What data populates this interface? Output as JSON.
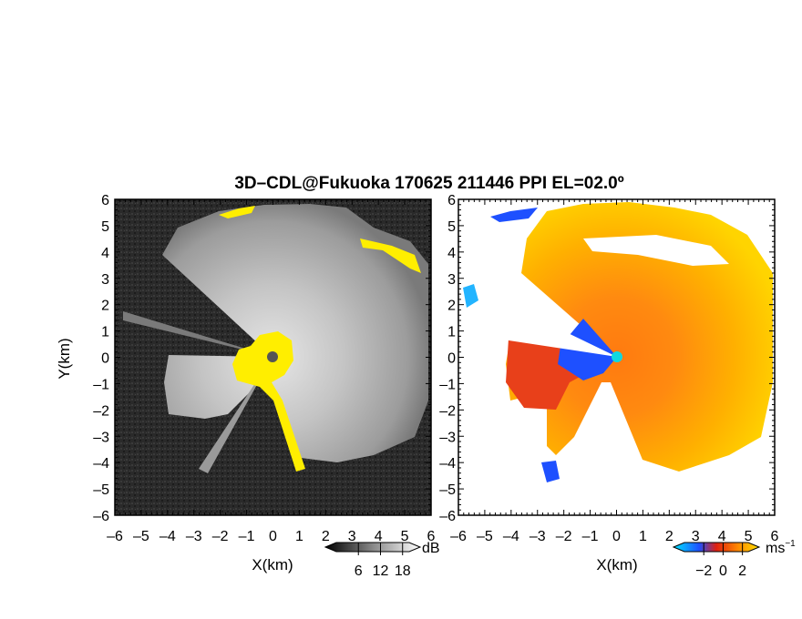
{
  "figure": {
    "title": "3D–CDL@Fukuoka 170625 211446 PPI EL=02.0º"
  },
  "chart_data": [
    {
      "type": "heatmap",
      "name": "reflectivity-ppi",
      "xlabel": "X(km)",
      "ylabel": "Y(km)",
      "xlim": [
        -6,
        6
      ],
      "ylim": [
        -6,
        6
      ],
      "x_ticks": [
        "–6",
        "–5",
        "–4",
        "–3",
        "–2",
        "–1",
        "0",
        "1",
        "2",
        "3",
        "4",
        "5",
        "6"
      ],
      "y_ticks": [
        "6",
        "5",
        "4",
        "3",
        "2",
        "1",
        "0",
        "–1",
        "–2",
        "–3",
        "–4",
        "–5",
        "–6"
      ],
      "colorbar": {
        "unit": "dB",
        "ticks": [
          "6",
          "12",
          "18"
        ],
        "values": [
          6,
          12,
          18
        ]
      },
      "colors": {
        "background": "#2a2a2a",
        "echo_light": "#d8d8d8",
        "echo_mid": "#9a9a9a",
        "highlight": "#ffee00",
        "radar_site": "#555555"
      }
    },
    {
      "type": "heatmap",
      "name": "doppler-velocity-ppi",
      "xlabel": "X(km)",
      "ylabel": "",
      "xlim": [
        -6,
        6
      ],
      "ylim": [
        -6,
        6
      ],
      "x_ticks": [
        "–6",
        "–5",
        "–4",
        "–3",
        "–2",
        "–1",
        "0",
        "1",
        "2",
        "3",
        "4",
        "5",
        "6"
      ],
      "y_ticks": [
        "6",
        "5",
        "4",
        "3",
        "2",
        "1",
        "0",
        "–1",
        "–2",
        "–3",
        "–4",
        "–5",
        "–6"
      ],
      "colorbar": {
        "unit": "ms",
        "unit_exp": "−1",
        "ticks": [
          "−2",
          "0",
          "2"
        ],
        "values": [
          -2,
          0,
          2
        ]
      },
      "colors": {
        "negative": "#1e50ff",
        "cyan": "#22b4ff",
        "zero": "#e03010",
        "positive_mid": "#ff8800",
        "positive_high": "#ffd000",
        "radar_site": "#10d8e0"
      }
    }
  ]
}
